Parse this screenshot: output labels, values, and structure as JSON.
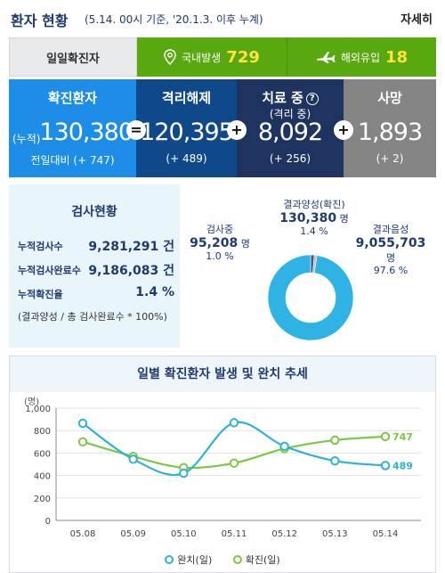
{
  "header": {
    "title": "환자 현황",
    "subtitle": "(5.14. 00시 기준, '20.1.3. 이후 누계)",
    "more": "자세히"
  },
  "daily": {
    "label": "일일확진자",
    "domestic_label": "국내발생",
    "domestic_value": "729",
    "overseas_label": "해외유입",
    "overseas_value": "18",
    "bg_color": "#58a80f"
  },
  "stats": {
    "confirmed": {
      "label": "확진환자",
      "prefix": "(누적)",
      "value": "130,380",
      "change": "전일대비 (+ 747)"
    },
    "released": {
      "label": "격리해제",
      "value": "120,395",
      "change": "(+ 489)"
    },
    "treating": {
      "label": "치료 중",
      "sub": "(격리 중)",
      "value": "8,092",
      "change": "(+ 256)"
    },
    "deaths": {
      "label": "사망",
      "value": "1,893",
      "change": "(+ 2)"
    },
    "op_equals": "=",
    "op_plus1": "+",
    "op_plus2": "+",
    "help_mark": "?"
  },
  "testing": {
    "title": "검사현황",
    "rows": [
      {
        "label": "누적검사수",
        "value": "9,281,291 건"
      },
      {
        "label": "누적검사완료수",
        "value": "9,186,083 건"
      },
      {
        "label": "누적확진율",
        "value": "1.4 %"
      }
    ],
    "note": "(결과양성 / 총 검사완료수 * 100%)",
    "pie": {
      "positive": {
        "label": "결과양성(확진)",
        "value": "130,380",
        "unit": "명",
        "pct": "1.4 %",
        "share": 1.4,
        "color": "#3c5a8a"
      },
      "testing": {
        "label": "검사중",
        "value": "95,208",
        "unit": "명",
        "pct": "1.0 %",
        "share": 1.0,
        "color": "#b9bec6"
      },
      "negative": {
        "label": "결과음성",
        "value": "9,055,703",
        "unit": "명",
        "pct": "97.6 %",
        "share": 97.6,
        "color": "#2fb3e4"
      }
    }
  },
  "chart_data": {
    "type": "line",
    "title": "일별 확진환자 발생 및 완치 추세",
    "ylabel": "(명)",
    "categories": [
      "05.08",
      "05.09",
      "05.10",
      "05.11",
      "05.12",
      "05.13",
      "05.14"
    ],
    "ylim": [
      0,
      1000
    ],
    "yticks": [
      "0",
      "200",
      "400",
      "600",
      "800",
      "1,000"
    ],
    "series": [
      {
        "name": "완치(일)",
        "values": [
          865,
          545,
          420,
          870,
          660,
          530,
          489
        ],
        "color": "#2fb3d3",
        "end_label": "489"
      },
      {
        "name": "확진(일)",
        "values": [
          700,
          570,
          470,
          510,
          640,
          715,
          747
        ],
        "color": "#7cc744",
        "end_label": "747"
      }
    ],
    "grid": true,
    "legend": "bottom"
  }
}
